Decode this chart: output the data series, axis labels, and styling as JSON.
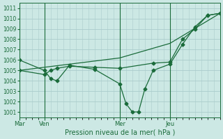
{
  "bg_color": "#cce8e4",
  "grid_color": "#aacccc",
  "line_color": "#1a6b3a",
  "xlabel": "Pression niveau de la mer( hPa )",
  "ylim": [
    1000.5,
    1011.5
  ],
  "yticks": [
    1001,
    1002,
    1003,
    1004,
    1005,
    1006,
    1007,
    1008,
    1009,
    1010,
    1011
  ],
  "day_labels": [
    "Mar",
    "Ven",
    "Mer",
    "Jeu"
  ],
  "day_positions": [
    0,
    24,
    96,
    144
  ],
  "xmin": 0,
  "xmax": 192,
  "line1_x": [
    0,
    24,
    30,
    36,
    48,
    72,
    96,
    102,
    108,
    114,
    120,
    128,
    144,
    156,
    168,
    180,
    192
  ],
  "line1_y": [
    1006.0,
    1005.0,
    1004.2,
    1004.0,
    1005.5,
    1005.1,
    1003.7,
    1001.8,
    1001.0,
    1001.0,
    1003.2,
    1005.0,
    1005.6,
    1007.5,
    1009.2,
    1010.3,
    1010.5
  ],
  "line2_x": [
    0,
    24,
    30,
    36,
    48,
    72,
    96,
    128,
    144,
    156,
    168,
    180,
    192
  ],
  "line2_y": [
    1005.0,
    1004.6,
    1005.0,
    1005.2,
    1005.4,
    1005.3,
    1005.2,
    1005.7,
    1005.8,
    1008.0,
    1009.0,
    1010.3,
    1010.5
  ],
  "line3_x": [
    0,
    48,
    96,
    144,
    192
  ],
  "line3_y": [
    1005.0,
    1005.6,
    1006.2,
    1007.6,
    1010.5
  ]
}
